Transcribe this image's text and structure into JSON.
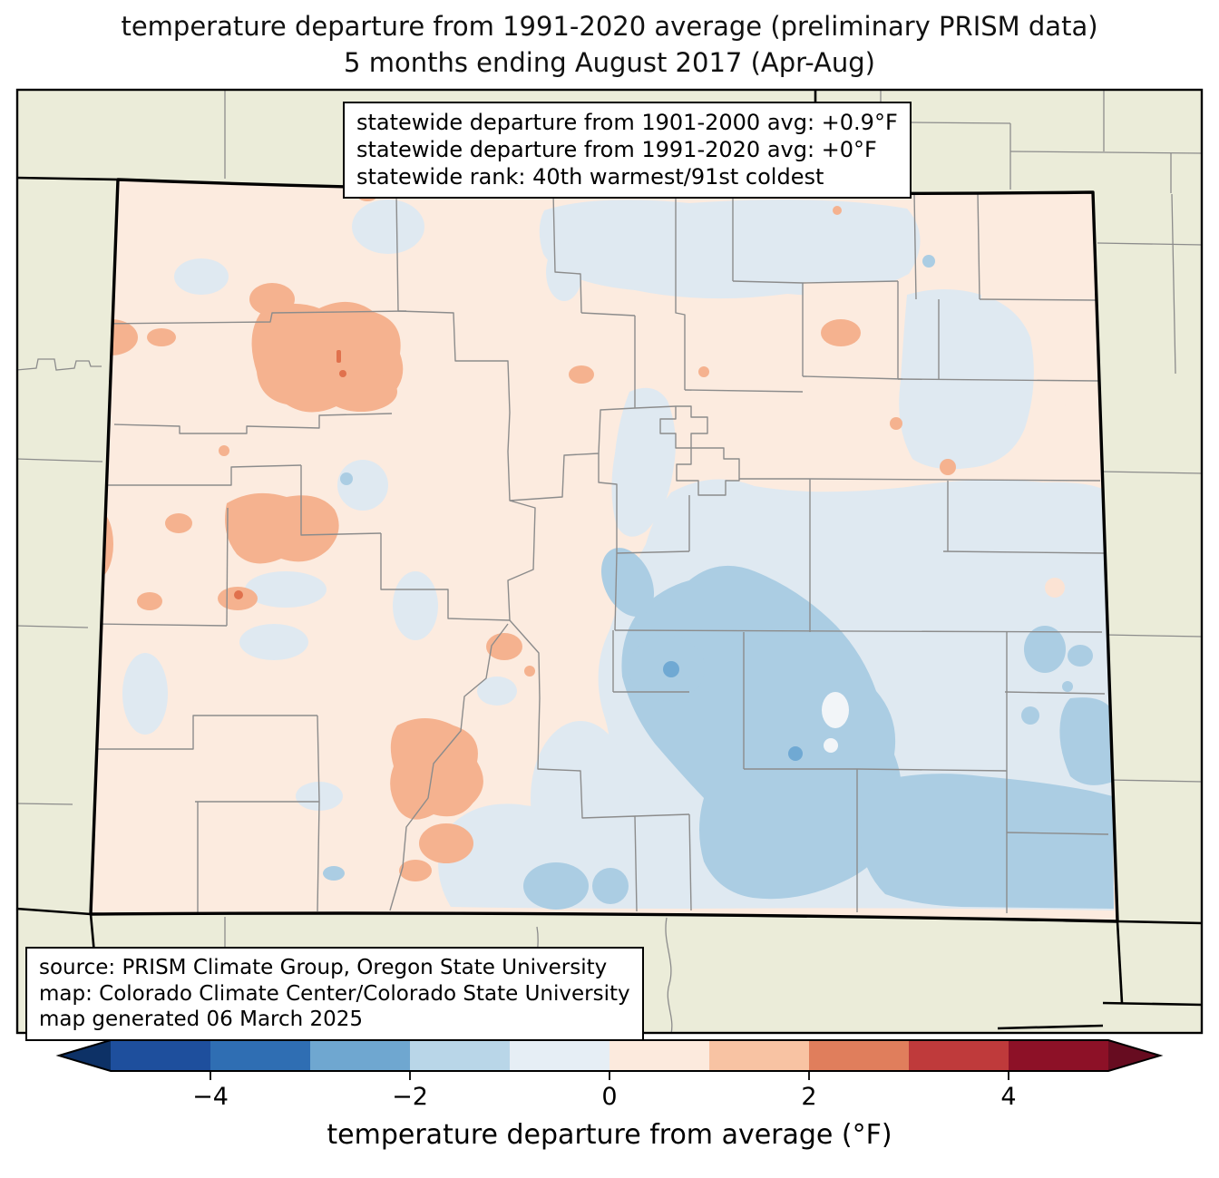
{
  "title": {
    "line1": "temperature departure from 1991-2020 average (preliminary PRISM data)",
    "line2": "5 months ending August 2017 (Apr-Aug)"
  },
  "stats_box": {
    "line1": "statewide departure from 1901-2000 avg: +0.9°F",
    "line2": "statewide departure from 1991-2020 avg: +0°F",
    "line3": "statewide rank: 40th warmest/91st coldest"
  },
  "source_box": {
    "line1": "source: PRISM Climate Group, Oregon State University",
    "line2": "map: Colorado Climate Center/Colorado State University",
    "line3": "map generated 06 March 2025"
  },
  "colorbar": {
    "label": "temperature departure from average (°F)",
    "ticks": [
      {
        "label": "−4",
        "value": -4
      },
      {
        "label": "−2",
        "value": -2
      },
      {
        "label": "0",
        "value": 0
      },
      {
        "label": "2",
        "value": 2
      },
      {
        "label": "4",
        "value": 4
      }
    ],
    "range": [
      -5,
      5
    ],
    "segment_colors": [
      "#1e4f9d",
      "#2f6eb3",
      "#6fa7d0",
      "#b9d6e8",
      "#e6eef5",
      "#fceadd",
      "#f8c3a3",
      "#e07e5c",
      "#bf3a3b",
      "#8d1127"
    ],
    "left_arrow_color": "#0d3166",
    "right_arrow_color": "#670c20",
    "outline_color": "#000000"
  },
  "map": {
    "region": "Colorado",
    "colors": {
      "outside": "#ebecd9",
      "state_base": "#fcebdf",
      "light_blue": "#dfe9f1",
      "medium_blue": "#abcde3",
      "strong_blue": "#70a9d3",
      "salmon": "#f5b28f",
      "deep_salmon": "#e0714d",
      "pale_pink_spot": "#fbe3d4",
      "white_spot": "#f2f5f8",
      "county_line": "#8c8c8c",
      "state_line": "#000000",
      "frame_line": "#000000"
    }
  }
}
